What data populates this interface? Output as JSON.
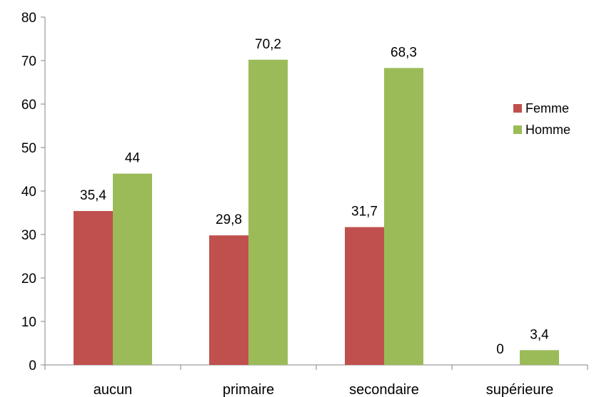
{
  "chart_data": {
    "type": "bar",
    "categories": [
      "aucun",
      "primaire",
      "secondaire",
      "supérieure"
    ],
    "series": [
      {
        "name": "Femme",
        "values": [
          35.4,
          29.8,
          31.7,
          0
        ],
        "labels": [
          "35,4",
          "29,8",
          "31,7",
          "0"
        ],
        "color": "#c0504d"
      },
      {
        "name": "Homme",
        "values": [
          44,
          70.2,
          68.3,
          3.4
        ],
        "labels": [
          "44",
          "70,2",
          "68,3",
          "3,4"
        ],
        "color": "#9bbb59"
      }
    ],
    "ylim": [
      0,
      80
    ],
    "yticks": [
      0,
      10,
      20,
      30,
      40,
      50,
      60,
      70,
      80
    ],
    "grid": false,
    "legend_position": "right"
  }
}
